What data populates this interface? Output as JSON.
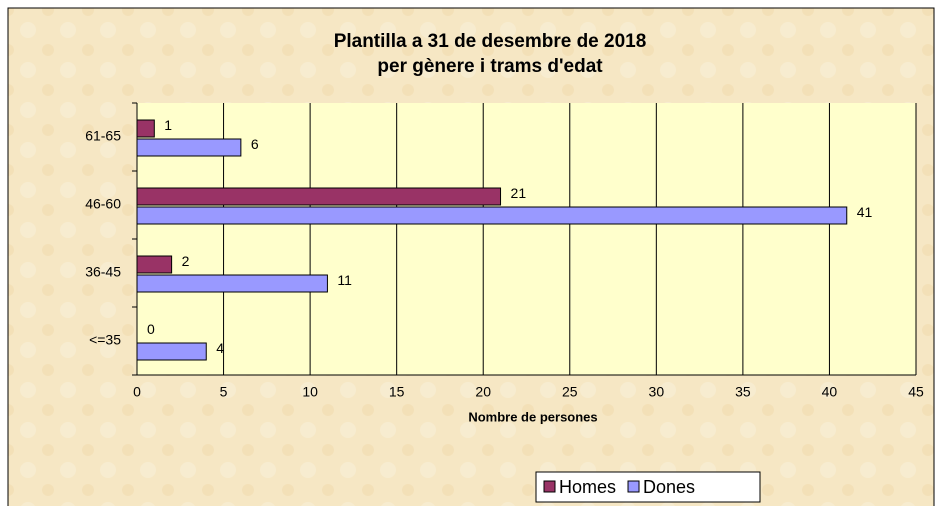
{
  "chart_data": {
    "type": "bar",
    "orientation": "horizontal",
    "title": "Plantilla a 31 de desembre de 2018",
    "subtitle": "per gènere i trams d'edat",
    "x_label": "Nombre de persones",
    "categories": [
      "61-65",
      "46-60",
      "36-45",
      "<=35"
    ],
    "series": [
      {
        "name": "Homes",
        "color": "#993366",
        "values": [
          1,
          21,
          2,
          0
        ]
      },
      {
        "name": "Dones",
        "color": "#9999ff",
        "values": [
          6,
          41,
          11,
          4
        ]
      }
    ],
    "xlim": [
      0,
      45
    ],
    "xticks": [
      0,
      5,
      10,
      15,
      20,
      25,
      30,
      35,
      40,
      45
    ],
    "grid": true,
    "legend": "bottom-right"
  }
}
